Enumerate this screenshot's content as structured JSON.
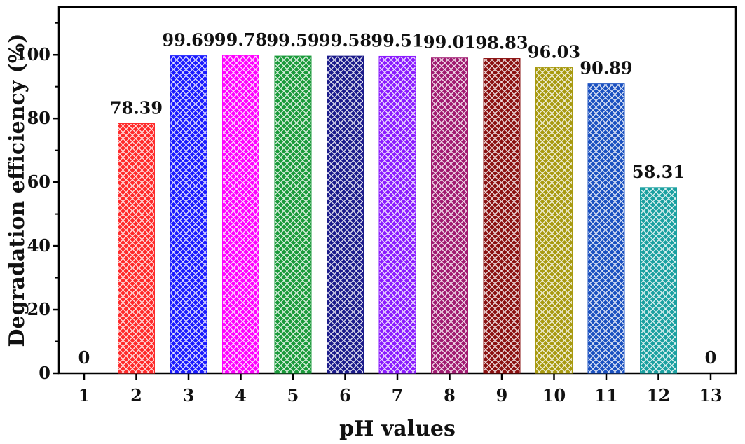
{
  "chart_data": {
    "type": "bar",
    "xlabel": "pH values",
    "ylabel": "Degradation efficiency (%)",
    "ylim": [
      0,
      115
    ],
    "yticks": [
      0,
      20,
      40,
      60,
      80,
      100
    ],
    "categories": [
      "1",
      "2",
      "3",
      "4",
      "5",
      "6",
      "7",
      "8",
      "9",
      "10",
      "11",
      "12",
      "13"
    ],
    "values": [
      0,
      78.39,
      99.69,
      99.78,
      99.59,
      99.58,
      99.51,
      99.01,
      98.83,
      96.03,
      90.89,
      58.31,
      0
    ],
    "data_labels": [
      "0",
      "78.39",
      "99.69",
      "99.78",
      "99.59",
      "99.58",
      "99.51",
      "99.01",
      "98.83",
      "96.03",
      "90.89",
      "58.31",
      "0"
    ],
    "bar_colors": [
      "#ff0000",
      "#ff2a2a",
      "#1a1aff",
      "#ff00ff",
      "#1a9a3a",
      "#1a1a8a",
      "#8a1aff",
      "#a01a70",
      "#8a1010",
      "#a89a10",
      "#1a50c0",
      "#1aa0a0",
      "#888888"
    ],
    "bar_pattern": "crosshatch-diamond",
    "grid": false,
    "legend": "none"
  }
}
